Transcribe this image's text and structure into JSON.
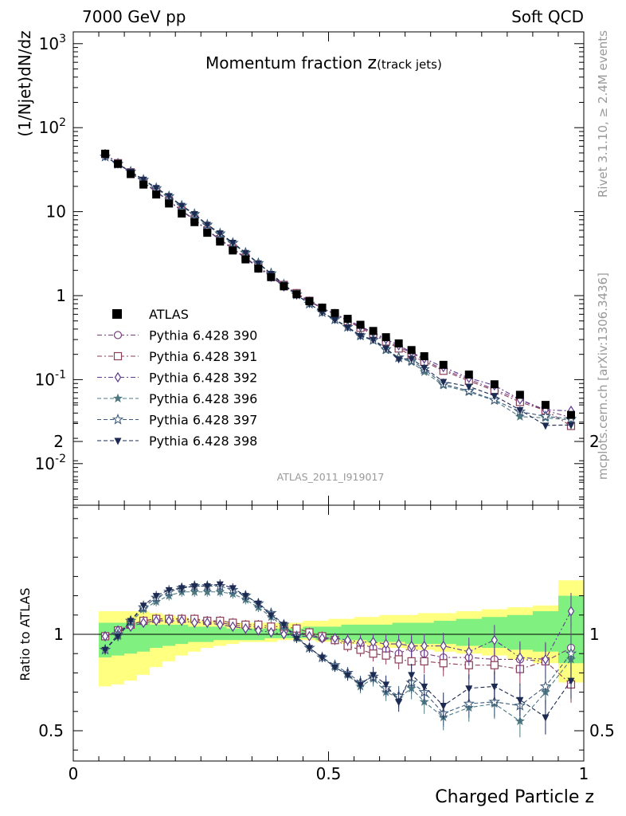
{
  "header": {
    "left": "7000 GeV pp",
    "right": "Soft QCD"
  },
  "side_labels": {
    "top": "Rivet 3.1.10, ≥ 2.4M events",
    "bottom": "mcplots.cern.ch [arXiv:1306.3436]"
  },
  "chart_data": {
    "type": "scatter",
    "title_main": "Momentum fraction",
    "title_symbol": "z",
    "title_sub": "(track jets)",
    "analysis_tag": "ATLAS_2011_I919017",
    "xlabel": "Charged Particle z",
    "ylabel_top": "(1/Njet)dN/dz",
    "ylabel_bottom": "Ratio to ATLAS",
    "xlim": [
      0,
      1
    ],
    "ylim_top": [
      0.003,
      1500
    ],
    "yscale_top": "log",
    "ylim_bottom": [
      0.35,
      2.3
    ],
    "x_ticklabels": [
      "0",
      "0.5",
      "1"
    ],
    "top_ticklabels": [
      "10^-2",
      "10^-1",
      "1",
      "10",
      "10^2",
      "10^3"
    ],
    "bottom_ticklabels": [
      "0.5",
      "1",
      "2"
    ],
    "legend_position": "middle-left",
    "x": [
      0.0625,
      0.0875,
      0.1125,
      0.1375,
      0.1625,
      0.1875,
      0.2125,
      0.2375,
      0.2625,
      0.2875,
      0.3125,
      0.3375,
      0.3625,
      0.3875,
      0.4125,
      0.4375,
      0.4625,
      0.4875,
      0.5125,
      0.5375,
      0.5625,
      0.5875,
      0.6125,
      0.6375,
      0.6625,
      0.6875,
      0.725,
      0.775,
      0.825,
      0.875,
      0.925,
      0.975
    ],
    "atlas": [
      49,
      37,
      28,
      21,
      16,
      12.5,
      9.5,
      7.5,
      5.6,
      4.4,
      3.45,
      2.7,
      2.1,
      1.66,
      1.29,
      1.04,
      0.86,
      0.72,
      0.62,
      0.53,
      0.45,
      0.38,
      0.32,
      0.27,
      0.225,
      0.19,
      0.15,
      0.115,
      0.088,
      0.066,
      0.05,
      0.038
    ],
    "band_outer": [
      [
        0.73,
        1.12
      ],
      [
        0.74,
        1.12
      ],
      [
        0.76,
        1.12
      ],
      [
        0.79,
        1.12
      ],
      [
        0.83,
        1.11
      ],
      [
        0.86,
        1.1
      ],
      [
        0.89,
        1.09
      ],
      [
        0.91,
        1.08
      ],
      [
        0.93,
        1.07
      ],
      [
        0.94,
        1.07
      ],
      [
        0.95,
        1.06
      ],
      [
        0.96,
        1.06
      ],
      [
        0.96,
        1.06
      ],
      [
        0.96,
        1.06
      ],
      [
        0.97,
        1.06
      ],
      [
        0.97,
        1.06
      ],
      [
        0.97,
        1.07
      ],
      [
        0.96,
        1.07
      ],
      [
        0.96,
        1.08
      ],
      [
        0.95,
        1.08
      ],
      [
        0.95,
        1.09
      ],
      [
        0.94,
        1.09
      ],
      [
        0.93,
        1.1
      ],
      [
        0.93,
        1.1
      ],
      [
        0.92,
        1.1
      ],
      [
        0.92,
        1.11
      ],
      [
        0.91,
        1.11
      ],
      [
        0.9,
        1.12
      ],
      [
        0.89,
        1.13
      ],
      [
        0.87,
        1.14
      ],
      [
        0.85,
        1.15
      ],
      [
        0.75,
        1.28
      ]
    ],
    "band_inner": [
      [
        0.88,
        1.06
      ],
      [
        0.89,
        1.06
      ],
      [
        0.9,
        1.06
      ],
      [
        0.91,
        1.06
      ],
      [
        0.93,
        1.05
      ],
      [
        0.94,
        1.05
      ],
      [
        0.95,
        1.05
      ],
      [
        0.96,
        1.04
      ],
      [
        0.96,
        1.04
      ],
      [
        0.97,
        1.04
      ],
      [
        0.97,
        1.03
      ],
      [
        0.97,
        1.03
      ],
      [
        0.97,
        1.03
      ],
      [
        0.98,
        1.03
      ],
      [
        0.98,
        1.03
      ],
      [
        0.98,
        1.03
      ],
      [
        0.98,
        1.04
      ],
      [
        0.97,
        1.04
      ],
      [
        0.97,
        1.04
      ],
      [
        0.97,
        1.05
      ],
      [
        0.97,
        1.05
      ],
      [
        0.96,
        1.05
      ],
      [
        0.96,
        1.05
      ],
      [
        0.96,
        1.06
      ],
      [
        0.95,
        1.06
      ],
      [
        0.95,
        1.06
      ],
      [
        0.95,
        1.07
      ],
      [
        0.94,
        1.08
      ],
      [
        0.93,
        1.09
      ],
      [
        0.92,
        1.1
      ],
      [
        0.91,
        1.12
      ],
      [
        0.85,
        1.2
      ]
    ],
    "series": [
      {
        "name": "Pythia 6.428 390",
        "color": "#7b3f7d",
        "dash": "6,3,2,3",
        "marker": "circle-open",
        "ratio": [
          0.99,
          1.02,
          1.05,
          1.07,
          1.08,
          1.08,
          1.08,
          1.07,
          1.07,
          1.06,
          1.05,
          1.04,
          1.04,
          1.03,
          1.02,
          1.01,
          1.0,
          0.98,
          0.97,
          0.96,
          0.95,
          0.93,
          0.92,
          0.9,
          0.93,
          0.9,
          0.88,
          0.88,
          0.87,
          0.87,
          0.86,
          0.93
        ]
      },
      {
        "name": "Pythia 6.428 391",
        "color": "#8a3d56",
        "dash": "6,3,2,3",
        "marker": "square-open",
        "ratio": [
          0.99,
          1.02,
          1.05,
          1.07,
          1.08,
          1.08,
          1.08,
          1.08,
          1.07,
          1.07,
          1.06,
          1.05,
          1.05,
          1.04,
          1.04,
          1.03,
          1.01,
          0.99,
          0.97,
          0.94,
          0.92,
          0.9,
          0.89,
          0.87,
          0.86,
          0.86,
          0.85,
          0.84,
          0.84,
          0.82,
          0.86,
          0.74
        ]
      },
      {
        "name": "Pythia 6.428 392",
        "color": "#5d3a91",
        "dash": "6,3,2,3",
        "marker": "diamond-open",
        "ratio": [
          0.99,
          1.02,
          1.04,
          1.06,
          1.07,
          1.07,
          1.07,
          1.06,
          1.06,
          1.05,
          1.04,
          1.03,
          1.02,
          1.01,
          1.0,
          0.99,
          0.99,
          0.98,
          0.98,
          0.97,
          0.96,
          0.96,
          0.95,
          0.95,
          0.94,
          0.94,
          0.94,
          0.91,
          0.97,
          0.88,
          0.87,
          1.12
        ]
      },
      {
        "name": "Pythia 6.428 396",
        "color": "#4e7880",
        "dash": "5,3",
        "marker": "star-filled",
        "ratio": [
          0.92,
          0.99,
          1.06,
          1.13,
          1.17,
          1.2,
          1.22,
          1.22,
          1.22,
          1.22,
          1.21,
          1.18,
          1.14,
          1.09,
          1.04,
          0.98,
          0.93,
          0.88,
          0.83,
          0.79,
          0.73,
          0.77,
          0.7,
          0.67,
          0.72,
          0.65,
          0.57,
          0.62,
          0.64,
          0.55,
          0.7,
          0.87
        ]
      },
      {
        "name": "Pythia 6.428 397",
        "color": "#3e5d7c",
        "dash": "5,3",
        "marker": "star-open",
        "ratio": [
          0.92,
          1.0,
          1.07,
          1.14,
          1.19,
          1.22,
          1.24,
          1.25,
          1.25,
          1.25,
          1.23,
          1.2,
          1.16,
          1.11,
          1.05,
          0.99,
          0.93,
          0.88,
          0.84,
          0.8,
          0.75,
          0.78,
          0.72,
          0.68,
          0.75,
          0.7,
          0.59,
          0.64,
          0.65,
          0.63,
          0.73,
          0.9
        ]
      },
      {
        "name": "Pythia 6.428 398",
        "color": "#1d2a52",
        "dash": "5,3",
        "marker": "triangle-down-filled",
        "ratio": [
          0.92,
          0.99,
          1.07,
          1.15,
          1.2,
          1.23,
          1.24,
          1.25,
          1.25,
          1.26,
          1.24,
          1.2,
          1.16,
          1.1,
          1.05,
          0.98,
          0.93,
          0.88,
          0.83,
          0.79,
          0.74,
          0.79,
          0.74,
          0.65,
          0.79,
          0.73,
          0.63,
          0.72,
          0.73,
          0.66,
          0.57,
          0.76
        ]
      }
    ]
  }
}
